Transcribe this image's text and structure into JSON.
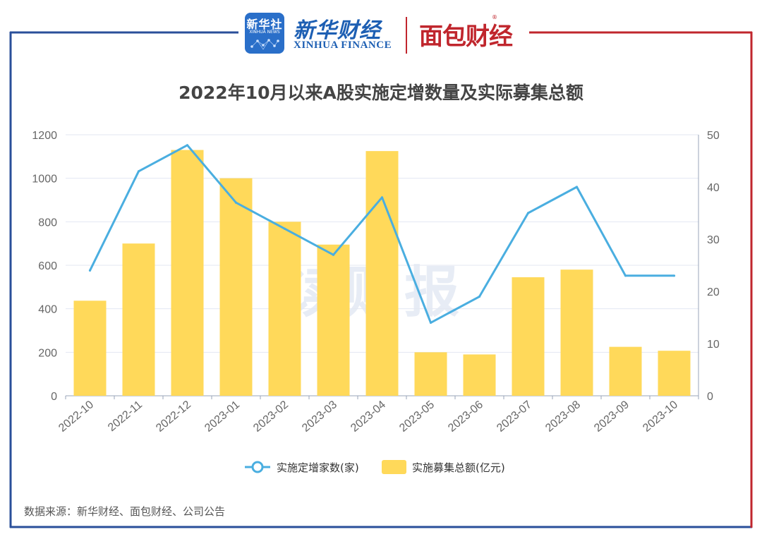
{
  "header": {
    "xinhua_badge_top": "新华社",
    "xinhua_badge_bottom": "XINHUA NEWS",
    "xinhua_finance_cn": "新华财经",
    "xinhua_finance_en": "XINHUA FINANCE",
    "mianbao_logo": "面包财经",
    "frame_left_color": "#2a4f9a",
    "frame_right_color": "#c0262d"
  },
  "watermark": "读财报",
  "source_note": "数据来源：新华财经、面包财经、公司公告",
  "colors": {
    "bar": "#ffd95a",
    "line": "#4aaee0",
    "grid": "#e3e7f2",
    "axis_text": "#666666"
  },
  "chart_data": {
    "type": "bar",
    "title": "2022年10月以来A股实施定增数量及实际募集总额",
    "categories": [
      "2022-10",
      "2022-11",
      "2022-12",
      "2023-01",
      "2023-02",
      "2023-03",
      "2023-04",
      "2023-05",
      "2023-06",
      "2023-07",
      "2023-08",
      "2023-09",
      "2023-10"
    ],
    "series": [
      {
        "name": "实施募集总额(亿元)",
        "type": "bar",
        "axis": "left",
        "values": [
          437,
          700,
          1130,
          1000,
          800,
          695,
          1125,
          200,
          190,
          545,
          580,
          225,
          207
        ]
      },
      {
        "name": "实施定增家数(家)",
        "type": "line",
        "axis": "right",
        "values": [
          24,
          43,
          48,
          37,
          32,
          27,
          38,
          14,
          19,
          35,
          40,
          23,
          23
        ]
      }
    ],
    "y_left": {
      "ylim": [
        0,
        1200
      ],
      "ticks": [
        0,
        200,
        400,
        600,
        800,
        1000,
        1200
      ]
    },
    "y_right": {
      "ylim": [
        0,
        50
      ],
      "ticks": [
        0,
        10,
        20,
        30,
        40,
        50
      ]
    },
    "legend": {
      "placement": "bottom-center",
      "order": [
        "实施定增家数(家)",
        "实施募集总额(亿元)"
      ]
    },
    "grid": true
  }
}
